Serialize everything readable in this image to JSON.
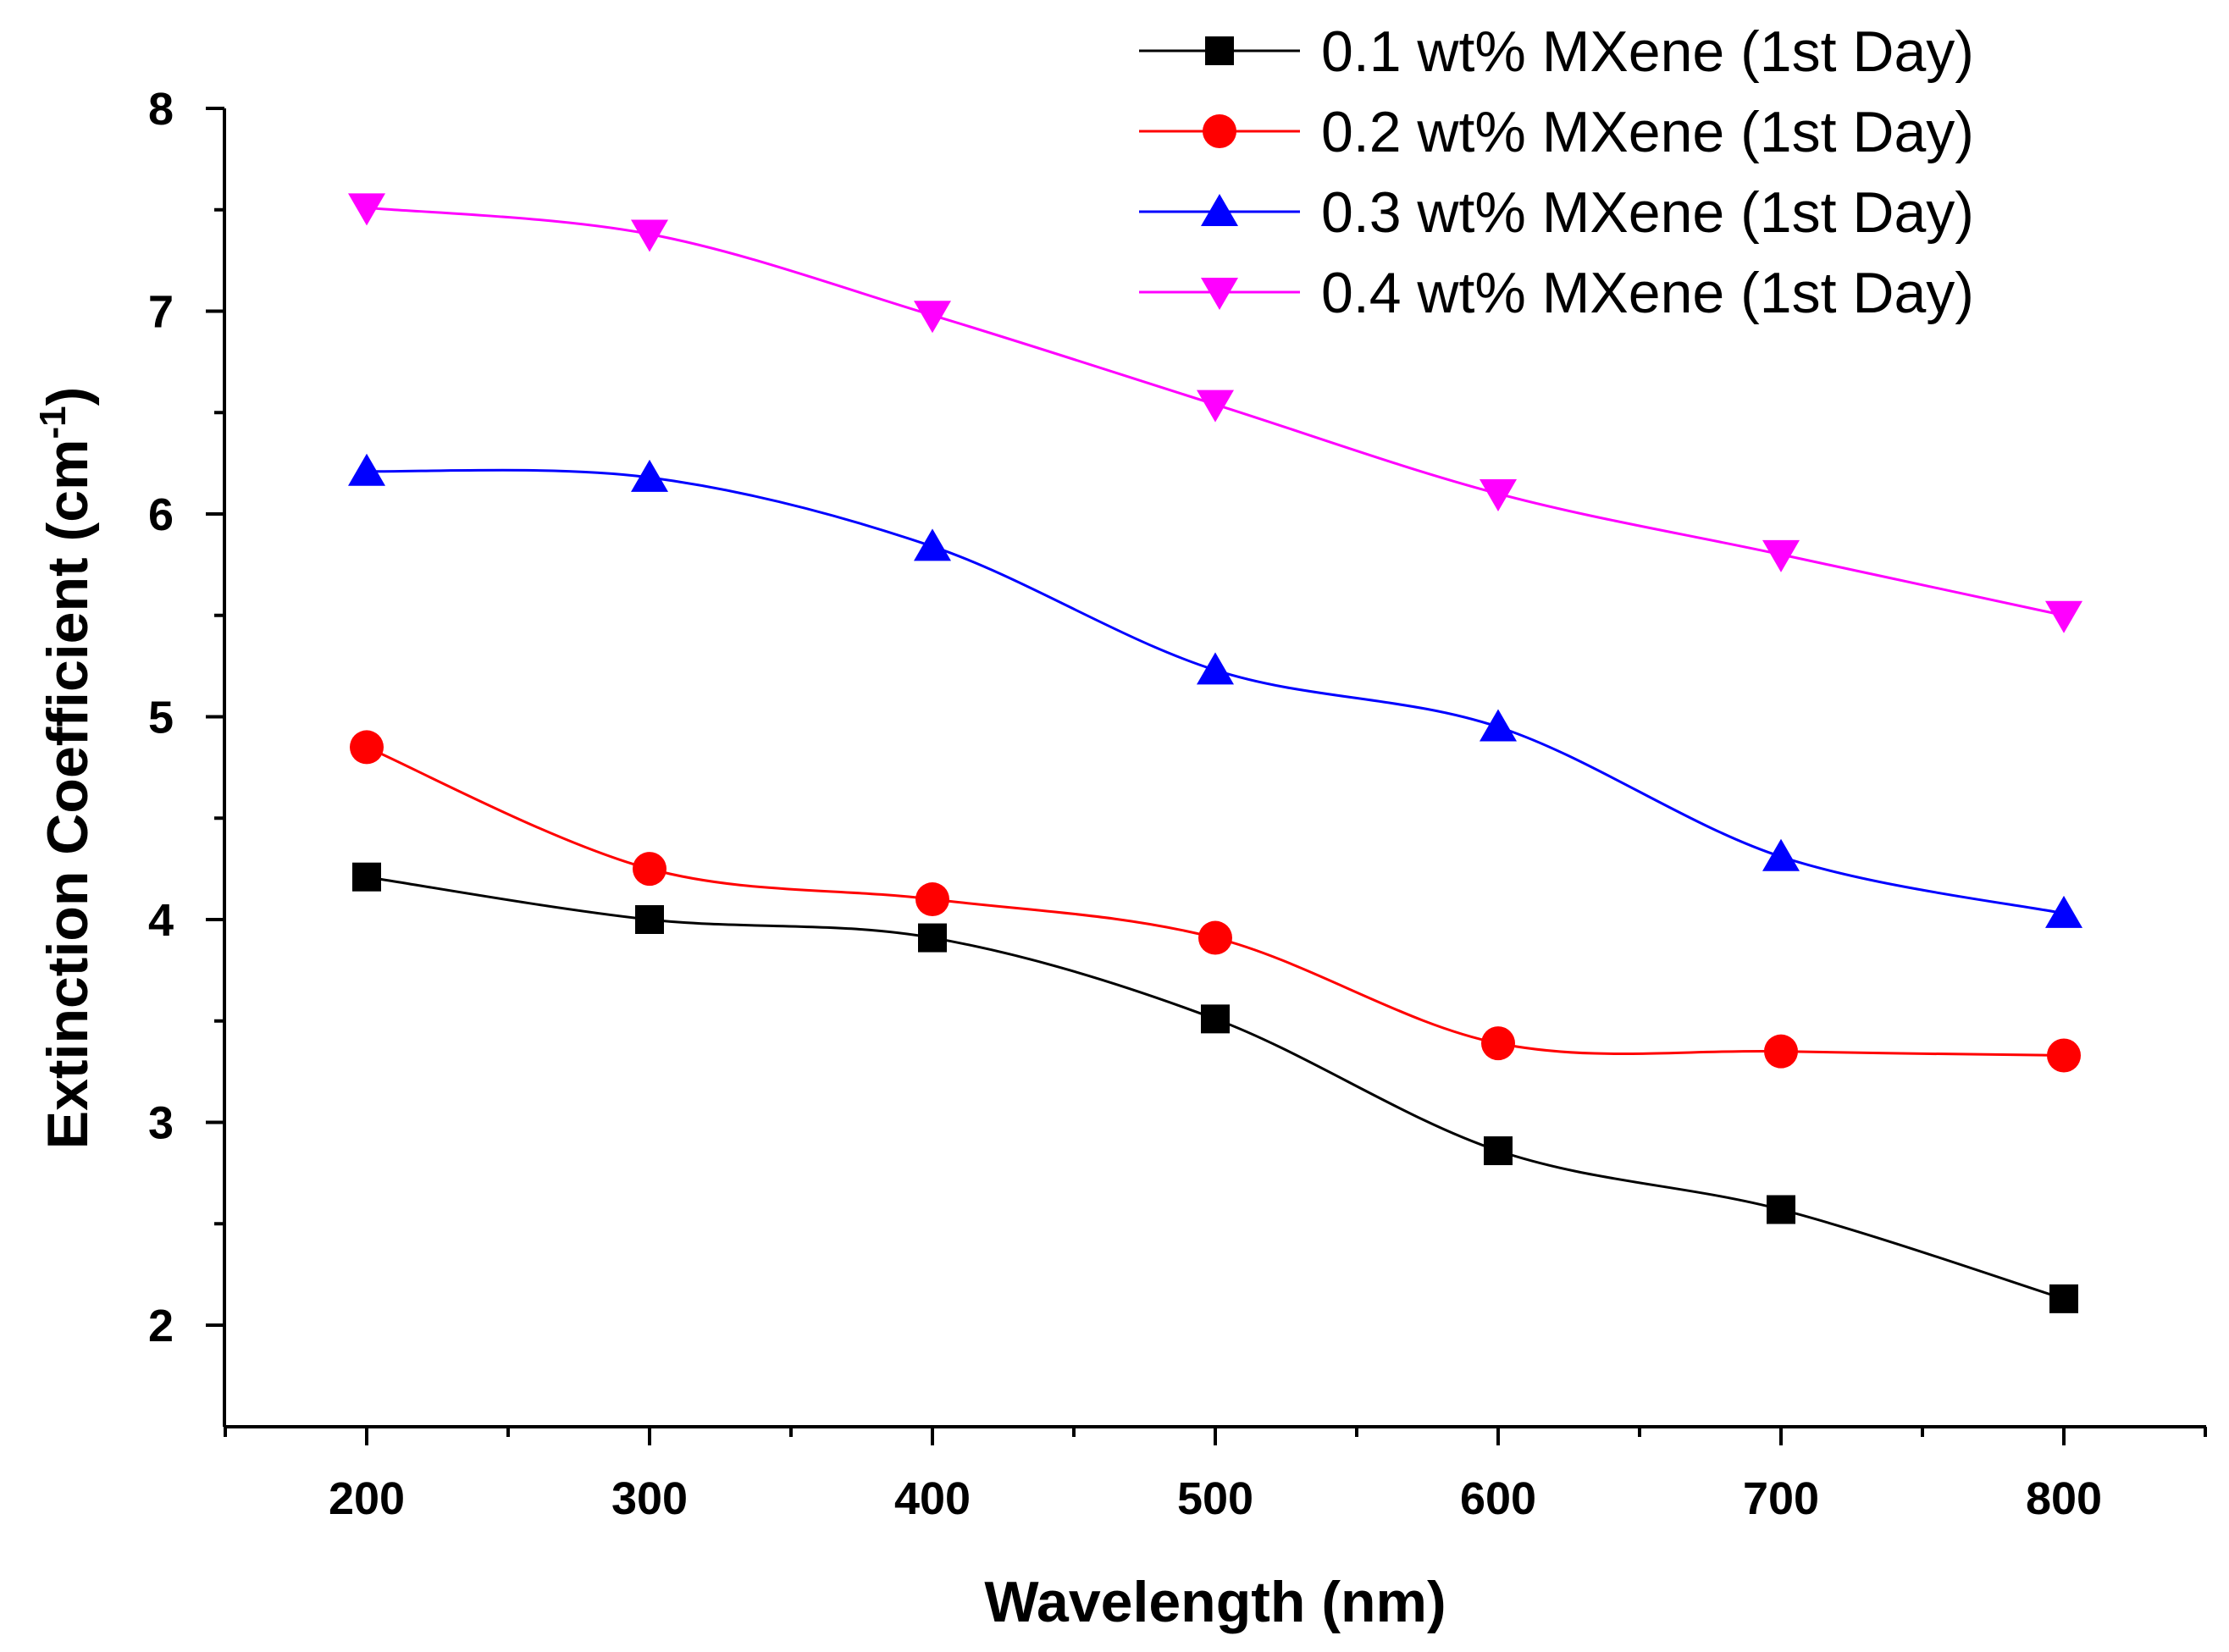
{
  "chart_data": {
    "type": "line",
    "title": "",
    "xlabel": "Wavelength (nm)",
    "ylabel_main": "Extinction Coefficient (cm",
    "ylabel_sup": "-1",
    "ylabel_close": ")",
    "xlim": [
      150,
      850
    ],
    "ylim": [
      1.5,
      8
    ],
    "x_ticks": [
      200,
      300,
      400,
      500,
      600,
      700,
      800
    ],
    "y_ticks": [
      2,
      3,
      4,
      5,
      6,
      7,
      8
    ],
    "grid": false,
    "legend_position": "top-right",
    "x": [
      200,
      300,
      400,
      500,
      600,
      700,
      800
    ],
    "series": [
      {
        "name": "0.1 wt% MXene (1st Day)",
        "color": "#000000",
        "marker": "square",
        "values": [
          4.21,
          4.0,
          3.91,
          3.51,
          2.86,
          2.57,
          2.13
        ]
      },
      {
        "name": "0.2 wt% MXene (1st Day)",
        "color": "#ff0000",
        "marker": "circle",
        "values": [
          4.85,
          4.25,
          4.1,
          3.91,
          3.39,
          3.35,
          3.33
        ]
      },
      {
        "name": "0.3 wt% MXene (1st Day)",
        "color": "#0000ff",
        "marker": "triangle-up",
        "values": [
          6.21,
          6.18,
          5.84,
          5.23,
          4.95,
          4.31,
          4.03
        ]
      },
      {
        "name": "0.4 wt% MXene (1st Day)",
        "color": "#ff00ff",
        "marker": "triangle-down",
        "values": [
          7.51,
          7.38,
          6.98,
          6.54,
          6.1,
          5.8,
          5.5
        ]
      }
    ]
  }
}
